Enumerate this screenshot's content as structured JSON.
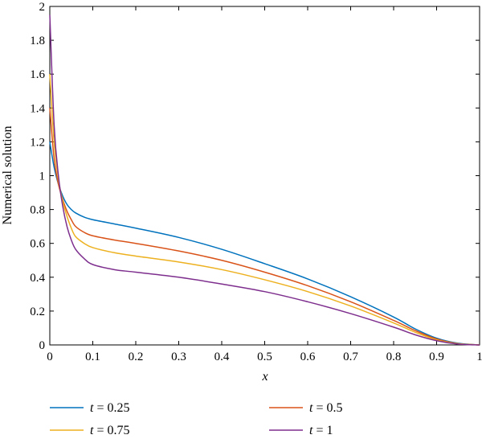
{
  "chart_data": {
    "type": "line",
    "xlabel": "x",
    "ylabel": "Numerical solution",
    "xlim": [
      0,
      1
    ],
    "ylim": [
      0,
      2
    ],
    "xticks": [
      "0",
      "0.1",
      "0.2",
      "0.3",
      "0.4",
      "0.5",
      "0.6",
      "0.7",
      "0.8",
      "0.9",
      "1"
    ],
    "yticks": [
      "0",
      "0.2",
      "0.4",
      "0.6",
      "0.8",
      "1",
      "1.2",
      "1.4",
      "1.6",
      "1.8",
      "2"
    ],
    "grid": false,
    "legend_position": "below",
    "series": [
      {
        "name": "t = 0.25",
        "legend_var": "t",
        "legend_value": "= 0.25",
        "color": "#0072BD",
        "x": [
          0,
          0.01,
          0.02,
          0.03,
          0.04,
          0.05,
          0.06,
          0.08,
          0.1,
          0.15,
          0.2,
          0.3,
          0.4,
          0.5,
          0.6,
          0.7,
          0.8,
          0.85,
          0.9,
          0.95,
          1
        ],
        "y": [
          1.2,
          1.05,
          0.95,
          0.88,
          0.83,
          0.8,
          0.78,
          0.755,
          0.74,
          0.715,
          0.69,
          0.635,
          0.565,
          0.48,
          0.39,
          0.285,
          0.165,
          0.095,
          0.04,
          0.01,
          0
        ]
      },
      {
        "name": "t = 0.5",
        "legend_var": "t",
        "legend_value": "= 0.5",
        "color": "#D95319",
        "x": [
          0,
          0.01,
          0.02,
          0.03,
          0.04,
          0.05,
          0.06,
          0.08,
          0.1,
          0.15,
          0.2,
          0.3,
          0.4,
          0.5,
          0.6,
          0.7,
          0.8,
          0.85,
          0.9,
          0.95,
          1
        ],
        "y": [
          1.4,
          1.1,
          0.95,
          0.86,
          0.79,
          0.74,
          0.7,
          0.665,
          0.645,
          0.62,
          0.6,
          0.555,
          0.5,
          0.43,
          0.35,
          0.255,
          0.145,
          0.085,
          0.035,
          0.008,
          0
        ]
      },
      {
        "name": "t = 0.75",
        "legend_var": "t",
        "legend_value": "= 0.75",
        "color": "#EDB120",
        "x": [
          0,
          0.01,
          0.02,
          0.03,
          0.04,
          0.05,
          0.06,
          0.08,
          0.1,
          0.15,
          0.2,
          0.3,
          0.4,
          0.5,
          0.6,
          0.7,
          0.8,
          0.85,
          0.9,
          0.95,
          1
        ],
        "y": [
          1.6,
          1.2,
          0.98,
          0.85,
          0.76,
          0.69,
          0.64,
          0.6,
          0.575,
          0.545,
          0.525,
          0.49,
          0.445,
          0.385,
          0.315,
          0.23,
          0.13,
          0.075,
          0.03,
          0.007,
          0
        ]
      },
      {
        "name": "t = 1",
        "legend_var": "t",
        "legend_value": "= 1",
        "color": "#7E2F8E",
        "x": [
          0,
          0.01,
          0.02,
          0.03,
          0.04,
          0.05,
          0.06,
          0.08,
          0.1,
          0.15,
          0.2,
          0.3,
          0.4,
          0.5,
          0.6,
          0.7,
          0.8,
          0.85,
          0.9,
          0.95,
          1
        ],
        "y": [
          1.95,
          1.3,
          1.0,
          0.82,
          0.7,
          0.62,
          0.565,
          0.51,
          0.475,
          0.445,
          0.43,
          0.4,
          0.36,
          0.315,
          0.255,
          0.185,
          0.105,
          0.06,
          0.025,
          0.005,
          0
        ]
      }
    ]
  }
}
